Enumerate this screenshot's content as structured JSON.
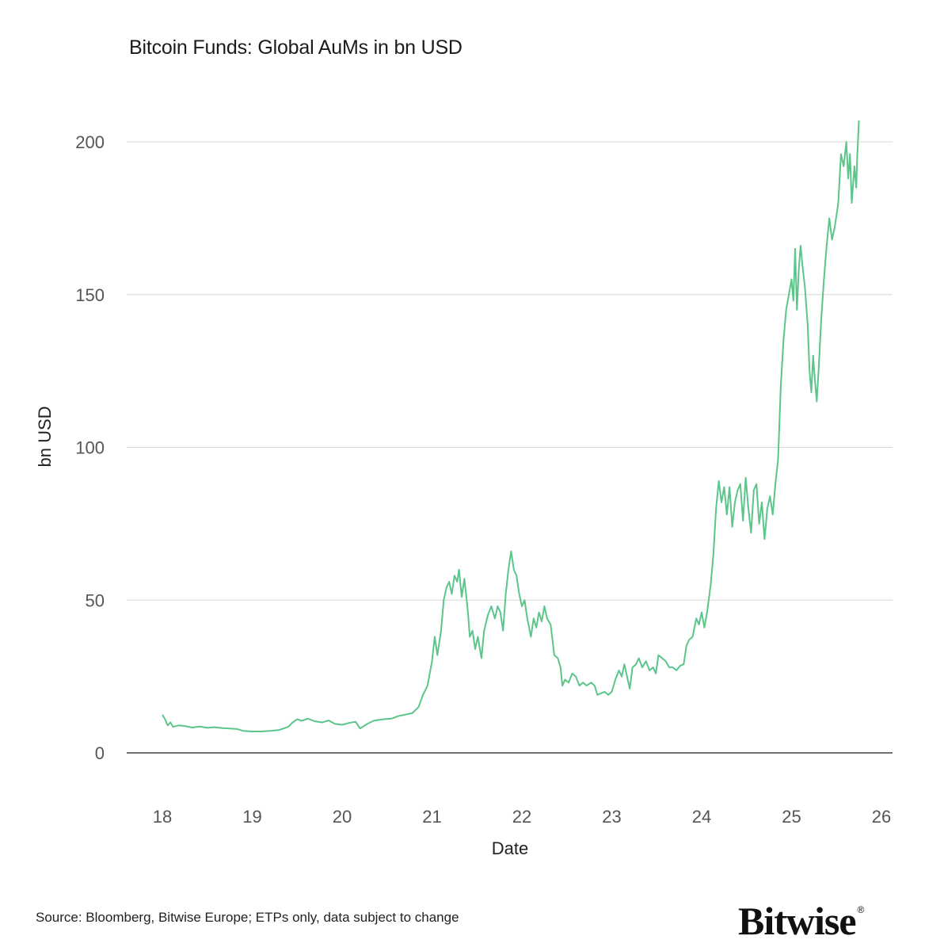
{
  "chart_data": {
    "type": "line",
    "title": "Bitcoin Funds: Global AuMs in bn USD",
    "xlabel": "Date",
    "ylabel": "bn USD",
    "xlim": [
      18,
      26
    ],
    "ylim": [
      0,
      200
    ],
    "x_ticks": [
      "18",
      "19",
      "20",
      "21",
      "22",
      "23",
      "24",
      "25",
      "26"
    ],
    "x_tick_values": [
      18,
      19,
      20,
      21,
      22,
      23,
      24,
      25,
      26
    ],
    "y_ticks": [
      "0",
      "50",
      "100",
      "150",
      "200"
    ],
    "y_tick_values": [
      0,
      50,
      100,
      150,
      200
    ],
    "grid": "horizontal",
    "line_color": "#5cc58a",
    "series": [
      {
        "name": "Bitcoin Funds AuM",
        "points": [
          [
            18.0,
            12.5
          ],
          [
            18.03,
            11.0
          ],
          [
            18.06,
            9.0
          ],
          [
            18.09,
            10.0
          ],
          [
            18.12,
            8.5
          ],
          [
            18.18,
            9.0
          ],
          [
            18.25,
            8.8
          ],
          [
            18.33,
            8.3
          ],
          [
            18.42,
            8.6
          ],
          [
            18.5,
            8.2
          ],
          [
            18.58,
            8.4
          ],
          [
            18.67,
            8.1
          ],
          [
            18.75,
            8.0
          ],
          [
            18.83,
            7.8
          ],
          [
            18.9,
            7.2
          ],
          [
            19.0,
            7.0
          ],
          [
            19.1,
            7.0
          ],
          [
            19.2,
            7.2
          ],
          [
            19.3,
            7.5
          ],
          [
            19.4,
            8.5
          ],
          [
            19.45,
            10.0
          ],
          [
            19.5,
            11.0
          ],
          [
            19.55,
            10.5
          ],
          [
            19.62,
            11.2
          ],
          [
            19.7,
            10.3
          ],
          [
            19.78,
            10.0
          ],
          [
            19.85,
            10.6
          ],
          [
            19.92,
            9.5
          ],
          [
            20.0,
            9.2
          ],
          [
            20.08,
            9.8
          ],
          [
            20.15,
            10.2
          ],
          [
            20.2,
            8.0
          ],
          [
            20.28,
            9.5
          ],
          [
            20.35,
            10.5
          ],
          [
            20.45,
            11.0
          ],
          [
            20.55,
            11.2
          ],
          [
            20.62,
            12.0
          ],
          [
            20.7,
            12.5
          ],
          [
            20.78,
            13.0
          ],
          [
            20.85,
            15.0
          ],
          [
            20.9,
            19.0
          ],
          [
            20.95,
            22.0
          ],
          [
            21.0,
            30.0
          ],
          [
            21.03,
            38.0
          ],
          [
            21.06,
            32.0
          ],
          [
            21.1,
            40.0
          ],
          [
            21.13,
            50.0
          ],
          [
            21.16,
            54.0
          ],
          [
            21.19,
            56.0
          ],
          [
            21.22,
            52.0
          ],
          [
            21.25,
            58.0
          ],
          [
            21.28,
            56.0
          ],
          [
            21.3,
            60.0
          ],
          [
            21.33,
            51.0
          ],
          [
            21.36,
            57.0
          ],
          [
            21.4,
            46.0
          ],
          [
            21.42,
            38.0
          ],
          [
            21.45,
            40.0
          ],
          [
            21.48,
            34.0
          ],
          [
            21.51,
            38.0
          ],
          [
            21.55,
            31.0
          ],
          [
            21.58,
            40.0
          ],
          [
            21.62,
            45.0
          ],
          [
            21.66,
            48.0
          ],
          [
            21.7,
            44.0
          ],
          [
            21.73,
            48.0
          ],
          [
            21.76,
            46.0
          ],
          [
            21.79,
            40.0
          ],
          [
            21.82,
            52.0
          ],
          [
            21.85,
            60.0
          ],
          [
            21.88,
            66.0
          ],
          [
            21.91,
            60.0
          ],
          [
            21.94,
            58.0
          ],
          [
            21.97,
            52.0
          ],
          [
            22.0,
            48.0
          ],
          [
            22.03,
            50.0
          ],
          [
            22.06,
            44.0
          ],
          [
            22.1,
            38.0
          ],
          [
            22.13,
            44.0
          ],
          [
            22.16,
            41.0
          ],
          [
            22.19,
            46.0
          ],
          [
            22.22,
            43.0
          ],
          [
            22.25,
            48.0
          ],
          [
            22.28,
            44.0
          ],
          [
            22.32,
            42.0
          ],
          [
            22.36,
            32.0
          ],
          [
            22.4,
            31.0
          ],
          [
            22.43,
            28.0
          ],
          [
            22.45,
            22.0
          ],
          [
            22.48,
            24.0
          ],
          [
            22.52,
            23.0
          ],
          [
            22.56,
            26.0
          ],
          [
            22.6,
            25.0
          ],
          [
            22.64,
            22.0
          ],
          [
            22.68,
            23.0
          ],
          [
            22.72,
            22.0
          ],
          [
            22.77,
            23.0
          ],
          [
            22.81,
            22.0
          ],
          [
            22.84,
            19.0
          ],
          [
            22.88,
            19.5
          ],
          [
            22.92,
            20.0
          ],
          [
            22.96,
            19.0
          ],
          [
            23.0,
            20.0
          ],
          [
            23.04,
            24.0
          ],
          [
            23.08,
            27.0
          ],
          [
            23.11,
            25.0
          ],
          [
            23.14,
            29.0
          ],
          [
            23.17,
            25.0
          ],
          [
            23.2,
            21.0
          ],
          [
            23.23,
            28.0
          ],
          [
            23.27,
            29.0
          ],
          [
            23.3,
            31.0
          ],
          [
            23.34,
            28.0
          ],
          [
            23.38,
            30.0
          ],
          [
            23.42,
            27.0
          ],
          [
            23.46,
            28.0
          ],
          [
            23.49,
            26.0
          ],
          [
            23.52,
            32.0
          ],
          [
            23.56,
            31.0
          ],
          [
            23.6,
            30.0
          ],
          [
            23.64,
            28.0
          ],
          [
            23.68,
            28.0
          ],
          [
            23.72,
            27.0
          ],
          [
            23.76,
            28.5
          ],
          [
            23.8,
            29.0
          ],
          [
            23.83,
            35.0
          ],
          [
            23.86,
            37.0
          ],
          [
            23.9,
            38.0
          ],
          [
            23.94,
            44.0
          ],
          [
            23.97,
            42.0
          ],
          [
            24.0,
            46.0
          ],
          [
            24.03,
            41.0
          ],
          [
            24.06,
            46.0
          ],
          [
            24.1,
            55.0
          ],
          [
            24.13,
            65.0
          ],
          [
            24.16,
            80.0
          ],
          [
            24.19,
            89.0
          ],
          [
            24.22,
            82.0
          ],
          [
            24.25,
            87.0
          ],
          [
            24.28,
            78.0
          ],
          [
            24.31,
            87.0
          ],
          [
            24.34,
            74.0
          ],
          [
            24.37,
            82.0
          ],
          [
            24.4,
            86.0
          ],
          [
            24.43,
            88.0
          ],
          [
            24.46,
            76.0
          ],
          [
            24.49,
            90.0
          ],
          [
            24.52,
            80.0
          ],
          [
            24.55,
            72.0
          ],
          [
            24.58,
            86.0
          ],
          [
            24.61,
            88.0
          ],
          [
            24.64,
            75.0
          ],
          [
            24.67,
            82.0
          ],
          [
            24.7,
            70.0
          ],
          [
            24.73,
            80.0
          ],
          [
            24.76,
            84.0
          ],
          [
            24.79,
            78.0
          ],
          [
            24.82,
            88.0
          ],
          [
            24.85,
            96.0
          ],
          [
            24.88,
            120.0
          ],
          [
            24.91,
            135.0
          ],
          [
            24.94,
            145.0
          ],
          [
            24.97,
            150.0
          ],
          [
            25.0,
            155.0
          ],
          [
            25.02,
            148.0
          ],
          [
            25.04,
            165.0
          ],
          [
            25.06,
            145.0
          ],
          [
            25.08,
            158.0
          ],
          [
            25.1,
            166.0
          ],
          [
            25.12,
            160.0
          ],
          [
            25.15,
            152.0
          ],
          [
            25.18,
            140.0
          ],
          [
            25.2,
            125.0
          ],
          [
            25.22,
            118.0
          ],
          [
            25.24,
            130.0
          ],
          [
            25.26,
            122.0
          ],
          [
            25.28,
            115.0
          ],
          [
            25.3,
            125.0
          ],
          [
            25.33,
            142.0
          ],
          [
            25.36,
            155.0
          ],
          [
            25.39,
            166.0
          ],
          [
            25.42,
            175.0
          ],
          [
            25.45,
            168.0
          ],
          [
            25.48,
            172.0
          ],
          [
            25.52,
            180.0
          ],
          [
            25.55,
            196.0
          ],
          [
            25.58,
            192.0
          ],
          [
            25.61,
            200.0
          ],
          [
            25.63,
            188.0
          ],
          [
            25.65,
            196.0
          ],
          [
            25.67,
            180.0
          ],
          [
            25.7,
            192.0
          ],
          [
            25.72,
            185.0
          ],
          [
            25.73,
            195.0
          ],
          [
            25.75,
            207.0
          ]
        ]
      }
    ]
  },
  "footer": {
    "source": "Source: Bloomberg, Bitwise Europe; ETPs only, data subject to change",
    "brand": "Bitwise",
    "brand_mark": "®"
  }
}
